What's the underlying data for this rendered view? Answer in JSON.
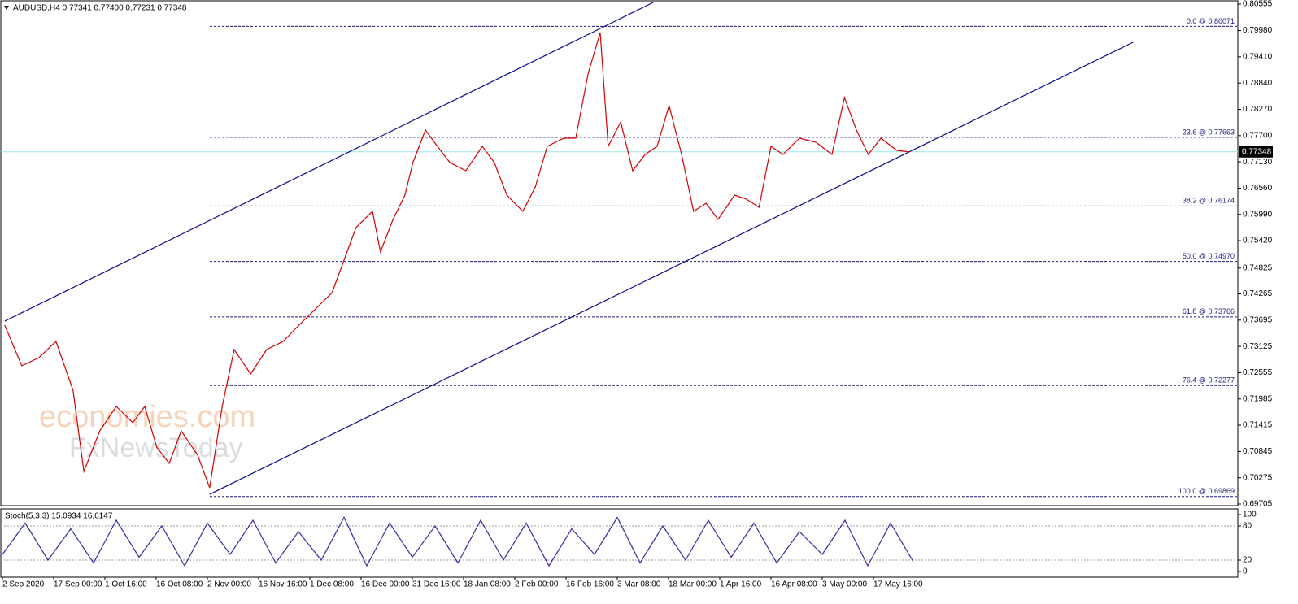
{
  "chart_data": [
    {
      "type": "line",
      "title": "AUDUSD,H4 0.77341 0.77400 0.77231 0.77348",
      "x": [
        4,
        34,
        64,
        94,
        124,
        143,
        171,
        200,
        229,
        250,
        271,
        293,
        314,
        343,
        364,
        386,
        407,
        436,
        464,
        493,
        521,
        550,
        579,
        600,
        621,
        650,
        664,
        686,
        707,
        721,
        743,
        764,
        786,
        814,
        843,
        864,
        886,
        914,
        936,
        957,
        986,
        1007,
        1029,
        1050,
        1064,
        1086,
        1107,
        1129,
        1150,
        1171,
        1193,
        1214,
        1236,
        1257,
        1286,
        1307,
        1329,
        1350,
        1371,
        1400,
        1429,
        1457,
        1479,
        1500,
        1521,
        1543,
        1571,
        1593
      ],
      "values": [
        0.73586,
        0.72704,
        0.7288,
        0.73233,
        0.72175,
        0.7041,
        0.71292,
        0.71822,
        0.71469,
        0.71822,
        0.70939,
        0.70587,
        0.71292,
        0.70763,
        0.70057,
        0.71822,
        0.73057,
        0.72527,
        0.73057,
        0.73233,
        0.73586,
        0.73939,
        0.74292,
        0.74997,
        0.75703,
        0.76056,
        0.75174,
        0.7588,
        0.76409,
        0.77115,
        0.7782,
        0.77467,
        0.77115,
        0.76938,
        0.77467,
        0.77115,
        0.76409,
        0.76056,
        0.76585,
        0.77467,
        0.77644,
        0.77644,
        0.79055,
        0.79937,
        0.77467,
        0.77997,
        0.76938,
        0.77291,
        0.77467,
        0.7835,
        0.77291,
        0.76056,
        0.76232,
        0.7588,
        0.76409,
        0.76321,
        0.76144,
        0.77467,
        0.77291,
        0.77644,
        0.77556,
        0.77291,
        0.78526,
        0.7782,
        0.77291,
        0.77644,
        0.77379,
        0.77348
      ],
      "color": "#d40000",
      "xlim": [
        0,
        2170
      ],
      "ylim": [
        0.69705,
        0.80555
      ],
      "yticks": [
        0.80555,
        {
          "value": 0.7998,
          "label": "0.79980"
        },
        {
          "value": 0.7941,
          "label": "0.79410"
        },
        {
          "value": 0.7884,
          "label": "0.78840"
        },
        {
          "value": 0.7827,
          "label": "0.78270"
        },
        {
          "value": 0.777,
          "label": "0.77700"
        },
        {
          "value": 0.7713,
          "label": "0.77130"
        },
        {
          "value": 0.7656,
          "label": "0.76560"
        },
        {
          "value": 0.7599,
          "label": "0.75990"
        },
        {
          "value": 0.7542,
          "label": "0.75420"
        },
        0.74825,
        0.74265,
        0.73695,
        0.73125,
        0.72555,
        0.71985,
        0.71415,
        0.70845,
        0.70275,
        0.69705
      ],
      "xticks": [
        {
          "value": 0,
          "label": "2 Sep 2020"
        },
        {
          "value": 90,
          "label": "17 Sep 00:00"
        },
        {
          "value": 180,
          "label": "1 Oct 16:00"
        },
        {
          "value": 270,
          "label": "16 Oct 08:00"
        },
        {
          "value": 360,
          "label": "2 Nov 00:00"
        },
        {
          "value": 450,
          "label": "16 Nov 16:00"
        },
        {
          "value": 540,
          "label": "1 Dec 08:00"
        },
        {
          "value": 630,
          "label": "16 Dec 00:00"
        },
        {
          "value": 720,
          "label": "31 Dec 16:00"
        },
        {
          "value": 810,
          "label": "18 Jan 08:00"
        },
        {
          "value": 900,
          "label": "2 Feb 00:00"
        },
        {
          "value": 990,
          "label": "16 Feb 16:00"
        },
        {
          "value": 1080,
          "label": "3 Mar 08:00"
        },
        {
          "value": 1170,
          "label": "18 Mar 00:00"
        },
        {
          "value": 1260,
          "label": "1 Apr 16:00"
        },
        {
          "value": 1350,
          "label": "16 Apr 08:00"
        },
        {
          "value": 1440,
          "label": "3 May 00:00"
        },
        {
          "value": 1530,
          "label": "17 May 16:00"
        }
      ],
      "last_price": 0.77348,
      "fib_levels": [
        {
          "value": 0.80071,
          "label": "0.0 @ 0.80071"
        },
        {
          "value": 0.77663,
          "label": "23.6 @ 0.77663"
        },
        {
          "value": 0.76174,
          "label": "38.2 @ 0.76174"
        },
        {
          "value": 0.7497,
          "label": "50.0 @ 0.74970"
        },
        {
          "value": 0.73766,
          "label": "61.8 @ 0.73766"
        },
        {
          "value": 0.72277,
          "label": "76.4 @ 0.72277"
        },
        {
          "value": 0.69869,
          "label": "100.0 @ 0.69869"
        }
      ],
      "trendlines": [
        {
          "x": [
            4,
            1143
          ],
          "y": [
            0.73674,
            0.8059
          ]
        },
        {
          "x": [
            364,
            1986
          ],
          "y": [
            0.69916,
            0.79726
          ]
        }
      ],
      "watermark": [
        "economies.com",
        "FxNewsToday"
      ]
    },
    {
      "type": "line",
      "title": "Stoch(5,3,3) 15.0934 16.6147",
      "x": [
        0,
        40,
        80,
        120,
        160,
        200,
        240,
        280,
        320,
        360,
        400,
        440,
        480,
        520,
        560,
        600,
        640,
        680,
        720,
        760,
        800,
        840,
        880,
        920,
        960,
        1000,
        1040,
        1080,
        1120,
        1160,
        1200,
        1240,
        1280,
        1320,
        1360,
        1400,
        1440,
        1480,
        1520,
        1560,
        1600
      ],
      "values": [
        30,
        85,
        20,
        75,
        15,
        90,
        25,
        80,
        10,
        85,
        30,
        90,
        15,
        70,
        20,
        95,
        10,
        85,
        25,
        80,
        15,
        90,
        20,
        85,
        10,
        75,
        30,
        95,
        15,
        80,
        20,
        90,
        25,
        85,
        15,
        70,
        30,
        90,
        10,
        85,
        17
      ],
      "color": "#3030a0",
      "xlim": [
        0,
        2170
      ],
      "ylim": [
        0,
        100
      ],
      "yticks": [
        0,
        20,
        80,
        100
      ],
      "levels": [
        20,
        80
      ]
    }
  ]
}
